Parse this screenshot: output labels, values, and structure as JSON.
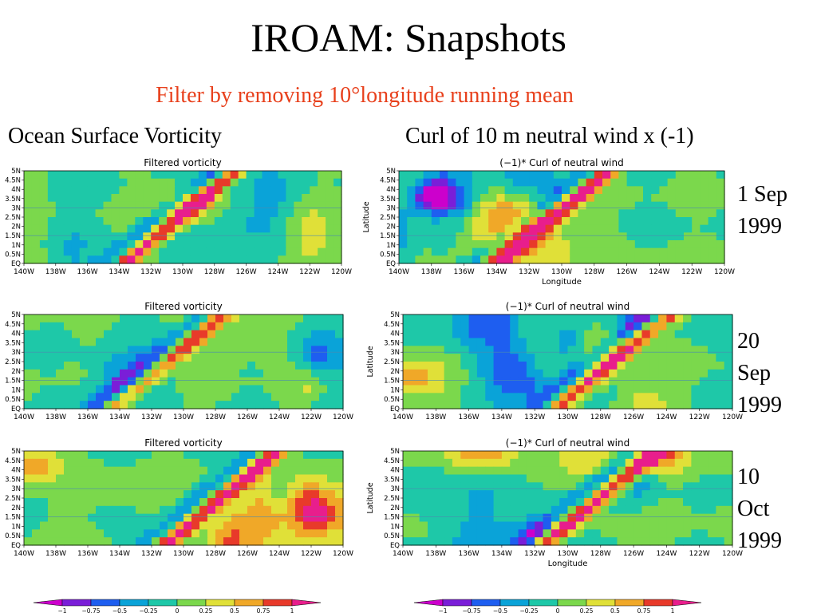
{
  "slide": {
    "title": "IROAM: Snapshots",
    "subtitle": "Filter by removing 10°longitude running mean",
    "left_heading": "Ocean Surface Vorticity",
    "right_heading": "Curl of 10 m neutral wind x (-1)"
  },
  "dates": [
    [
      "1 Sep",
      "1999"
    ],
    [
      "20",
      "Sep",
      "1999"
    ],
    [
      "10",
      "Oct",
      "1999"
    ]
  ],
  "panels": {
    "left_title": "Filtered vorticity",
    "right_title": "(−1)* Curl of neutral wind",
    "latitude_label": "Latitude",
    "longitude_label": "Longitude",
    "y_ticks": [
      "5N",
      "4.5N",
      "4N",
      "3.5N",
      "3N",
      "2.5N",
      "2N",
      "1.5N",
      "1N",
      "0.5N",
      "EQ"
    ],
    "x_ticks": [
      "140W",
      "138W",
      "136W",
      "134W",
      "132W",
      "130W",
      "128W",
      "126W",
      "124W",
      "122W",
      "120W"
    ]
  },
  "colorbar": {
    "labels": [
      "−1",
      "−0.75",
      "−0.5",
      "−0.25",
      "0",
      "0.25",
      "0.5",
      "0.75",
      "1"
    ],
    "colors": [
      "#cc00cc",
      "#7a1ed8",
      "#1e5ef0",
      "#0aa3d8",
      "#1ec8a8",
      "#7bd84c",
      "#e0e038",
      "#f0a828",
      "#e83a2a",
      "#e81e8c"
    ]
  },
  "chart_data": [
    {
      "type": "heatmap",
      "title": "Filtered vorticity",
      "x_range": [
        "140W",
        "120W"
      ],
      "y_range": [
        "EQ",
        "5N"
      ]
    },
    {
      "type": "heatmap",
      "title": "(−1)* Curl of neutral wind",
      "x_range": [
        "140W",
        "120W"
      ],
      "y_range": [
        "EQ",
        "5N"
      ],
      "xlabel": "Longitude",
      "ylabel": "Latitude"
    },
    {
      "type": "heatmap",
      "title": "Filtered vorticity",
      "x_range": [
        "140W",
        "120W"
      ],
      "y_range": [
        "EQ",
        "5N"
      ]
    },
    {
      "type": "heatmap",
      "title": "(−1)* Curl of neutral wind",
      "x_range": [
        "140W",
        "120W"
      ],
      "y_range": [
        "EQ",
        "5N"
      ],
      "ylabel": "Latitude"
    },
    {
      "type": "heatmap",
      "title": "Filtered vorticity",
      "x_range": [
        "140W",
        "120W"
      ],
      "y_range": [
        "EQ",
        "5N"
      ]
    },
    {
      "type": "heatmap",
      "title": "(−1)* Curl of neutral wind",
      "x_range": [
        "140W",
        "120W"
      ],
      "y_range": [
        "EQ",
        "5N"
      ],
      "xlabel": "Longitude",
      "ylabel": "Latitude"
    }
  ]
}
